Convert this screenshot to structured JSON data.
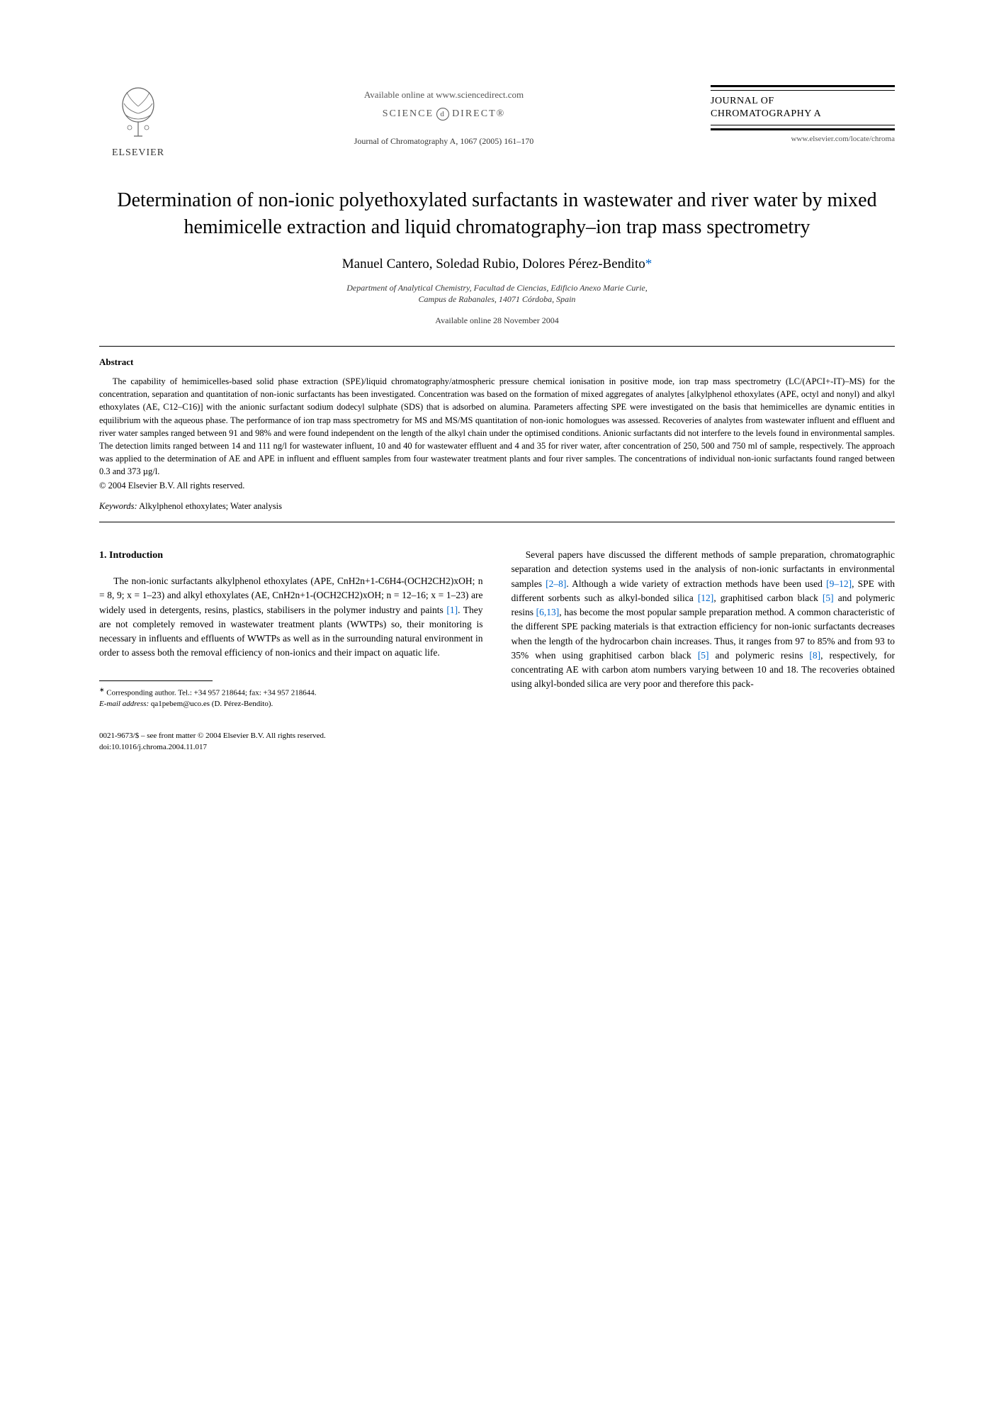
{
  "header": {
    "publisher_name": "ELSEVIER",
    "available_online": "Available online at www.sciencedirect.com",
    "science_direct_pre": "SCIENCE",
    "science_direct_post": "DIRECT®",
    "journal_reference": "Journal of Chromatography A, 1067 (2005) 161–170",
    "journal_title_line1": "JOURNAL OF",
    "journal_title_line2": "CHROMATOGRAPHY A",
    "journal_url": "www.elsevier.com/locate/chroma"
  },
  "article": {
    "title": "Determination of non-ionic polyethoxylated surfactants in wastewater and river water by mixed hemimicelle extraction and liquid chromatography–ion trap mass spectrometry",
    "authors": "Manuel Cantero, Soledad Rubio, Dolores Pérez-Bendito",
    "corr_marker": "*",
    "affiliation_line1": "Department of Analytical Chemistry, Facultad de Ciencias, Edificio Anexo Marie Curie,",
    "affiliation_line2": "Campus de Rabanales, 14071 Córdoba, Spain",
    "available_date": "Available online 28 November 2004"
  },
  "abstract": {
    "heading": "Abstract",
    "body": "The capability of hemimicelles-based solid phase extraction (SPE)/liquid chromatography/atmospheric pressure chemical ionisation in positive mode, ion trap mass spectrometry (LC/(APCI+-IT)–MS) for the concentration, separation and quantitation of non-ionic surfactants has been investigated. Concentration was based on the formation of mixed aggregates of analytes [alkylphenol ethoxylates (APE, octyl and nonyl) and alkyl ethoxylates (AE, C12–C16)] with the anionic surfactant sodium dodecyl sulphate (SDS) that is adsorbed on alumina. Parameters affecting SPE were investigated on the basis that hemimicelles are dynamic entities in equilibrium with the aqueous phase. The performance of ion trap mass spectrometry for MS and MS/MS quantitation of non-ionic homologues was assessed. Recoveries of analytes from wastewater influent and effluent and river water samples ranged between 91 and 98% and were found independent on the length of the alkyl chain under the optimised conditions. Anionic surfactants did not interfere to the levels found in environmental samples. The detection limits ranged between 14 and 111 ng/l for wastewater influent, 10 and 40 for wastewater effluent and 4 and 35 for river water, after concentration of 250, 500 and 750 ml of sample, respectively. The approach was applied to the determination of AE and APE in influent and effluent samples from four wastewater treatment plants and four river samples. The concentrations of individual non-ionic surfactants found ranged between 0.3 and 373 µg/l.",
    "copyright": "© 2004 Elsevier B.V. All rights reserved.",
    "keywords_label": "Keywords:",
    "keywords_text": " Alkylphenol ethoxylates; Water analysis"
  },
  "body": {
    "section_number": "1.",
    "section_title": "Introduction",
    "col1_para1": "The non-ionic surfactants alkylphenol ethoxylates (APE, CnH2n+1-C6H4-(OCH2CH2)xOH; n = 8, 9; x = 1–23) and alkyl ethoxylates (AE, CnH2n+1-(OCH2CH2)xOH; n = 12–16; x = 1–23) are widely used in detergents, resins, plastics, stabilisers in the polymer industry and paints [1]. They are not completely removed in wastewater treatment plants (WWTPs) so, their monitoring is necessary in influents and effluents of WWTPs as well as in the surrounding natural environment in order to assess both the removal efficiency of non-ionics and their impact on aquatic life.",
    "col2_para1": "Several papers have discussed the different methods of sample preparation, chromatographic separation and detection systems used in the analysis of non-ionic surfactants in environmental samples [2–8]. Although a wide variety of extraction methods have been used [9–12], SPE with different sorbents such as alkyl-bonded silica [12], graphitised carbon black [5] and polymeric resins [6,13], has become the most popular sample preparation method. A common characteristic of the different SPE packing materials is that extraction efficiency for non-ionic surfactants decreases when the length of the hydrocarbon chain increases. Thus, it ranges from 97 to 85% and from 93 to 35% when using graphitised carbon black [5] and polymeric resins [8], respectively, for concentrating AE with carbon atom numbers varying between 10 and 18. The recoveries obtained using alkyl-bonded silica are very poor and therefore this pack-"
  },
  "footnote": {
    "corr_label": "Corresponding author. Tel.: +34 957 218644; fax: +34 957 218644.",
    "email_label": "E-mail address:",
    "email_value": " qa1pebem@uco.es (D. Pérez-Bendito)."
  },
  "footer": {
    "issn_line": "0021-9673/$ – see front matter © 2004 Elsevier B.V. All rights reserved.",
    "doi_line": "doi:10.1016/j.chroma.2004.11.017"
  },
  "refs": {
    "r1": "[1]",
    "r2_8": "[2–8]",
    "r9_12": "[9–12]",
    "r12": "[12]",
    "r5a": "[5]",
    "r6_13": "[6,13]",
    "r5b": "[5]",
    "r8": "[8]"
  },
  "style": {
    "link_color": "#0066cc",
    "text_color": "#000000",
    "muted_color": "#555555",
    "title_fontsize": 28,
    "authors_fontsize": 19,
    "body_fontsize": 13.5,
    "abstract_fontsize": 12.5,
    "footnote_fontsize": 11
  }
}
